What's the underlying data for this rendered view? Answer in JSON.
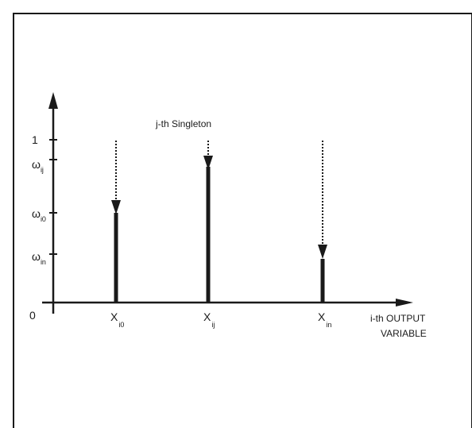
{
  "diagram": {
    "title": "j-th Singleton",
    "origin_label": "0",
    "x_axis_label_line1": "i-th OUTPUT",
    "x_axis_label_line2": "VARIABLE",
    "y_tick_one": "1",
    "y_ticks": [
      {
        "symbol": "ω",
        "sub": "ij"
      },
      {
        "symbol": "ω",
        "sub": "i0"
      },
      {
        "symbol": "ω",
        "sub": "in"
      }
    ],
    "x_ticks": [
      {
        "symbol": "X",
        "sub": "i0"
      },
      {
        "symbol": "X",
        "sub": "ij"
      },
      {
        "symbol": "X",
        "sub": "in"
      }
    ]
  }
}
